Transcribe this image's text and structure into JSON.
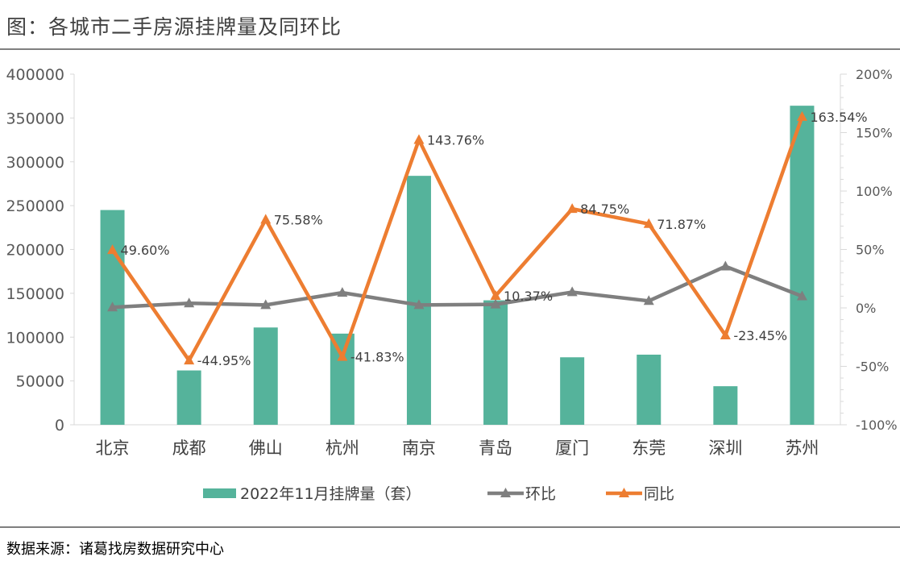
{
  "title": "图：各城市二手房源挂牌量及同环比",
  "source": "数据来源：诸葛找房数据研究中心",
  "colors": {
    "bar": "#55b39b",
    "mom": "#7f7f7f",
    "yoy": "#ed7d31",
    "axis": "#d9d9d9"
  },
  "chart_data": {
    "type": "bar",
    "categories": [
      "北京",
      "成都",
      "佛山",
      "杭州",
      "南京",
      "青岛",
      "厦门",
      "东莞",
      "深圳",
      "苏州"
    ],
    "series": [
      {
        "name": "2022年11月挂牌量（套）",
        "type": "bar",
        "axis": "left",
        "values": [
          245000,
          62000,
          111000,
          104000,
          284000,
          142000,
          77000,
          80000,
          44000,
          364000
        ]
      },
      {
        "name": "环比",
        "type": "line",
        "axis": "right",
        "unit": "%",
        "values": [
          0.5,
          4,
          2.5,
          13,
          2.5,
          3,
          13.5,
          6,
          35.5,
          10
        ]
      },
      {
        "name": "同比",
        "type": "line",
        "axis": "right",
        "unit": "%",
        "values": [
          49.6,
          -44.95,
          75.58,
          -41.83,
          143.76,
          10.37,
          84.75,
          71.87,
          -23.45,
          163.54
        ],
        "labels": [
          "49.60%",
          "-44.95%",
          "75.58%",
          "-41.83%",
          "143.76%",
          "10.37%",
          "84.75%",
          "71.87%",
          "-23.45%",
          "163.54%"
        ]
      }
    ],
    "y_left": {
      "min": 0,
      "max": 400000,
      "ticks": [
        "0",
        "50000",
        "100000",
        "150000",
        "200000",
        "250000",
        "300000",
        "350000",
        "400000"
      ]
    },
    "y_right": {
      "min": -100,
      "max": 200,
      "ticks": [
        "-100%",
        "-50%",
        "0%",
        "50%",
        "100%",
        "150%",
        "200%"
      ]
    },
    "legend_position": "bottom",
    "grid": false
  }
}
